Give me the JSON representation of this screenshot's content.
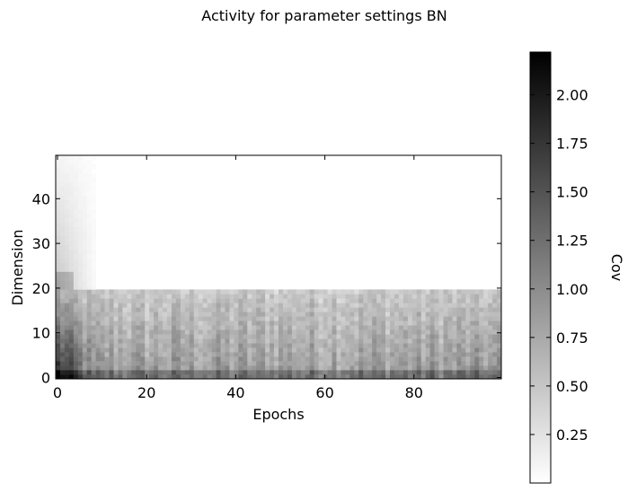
{
  "chart_data": {
    "type": "heatmap",
    "title": "Activity for parameter settings BN",
    "xlabel": "Epochs",
    "ylabel": "Dimension",
    "xlim": [
      0,
      99
    ],
    "ylim": [
      0,
      49
    ],
    "x_ticks": [
      "0",
      "20",
      "40",
      "60",
      "80"
    ],
    "y_ticks": [
      "0",
      "10",
      "20",
      "30",
      "40"
    ],
    "x_tick_values": [
      0,
      20,
      40,
      60,
      80
    ],
    "y_tick_values": [
      0,
      10,
      20,
      30,
      40
    ],
    "n_epochs": 100,
    "n_dimensions": 50,
    "colormap": "gray_r",
    "colorbar": {
      "label": "Cov",
      "range": [
        0.0,
        2.22
      ],
      "tick_values": [
        0.25,
        0.5,
        0.75,
        1.0,
        1.25,
        1.5,
        1.75,
        2.0
      ],
      "tick_labels": [
        "0.25",
        "0.50",
        "0.75",
        "1.00",
        "1.25",
        "1.50",
        "1.75",
        "2.00"
      ]
    },
    "value_profile": {
      "active_dimensions": [
        0,
        19
      ],
      "typical_active_value": 0.9,
      "peak_value": 2.2,
      "peak_region": "epochs 1-5, dimensions 0-8",
      "transient_region": "epochs 0-8, dimensions 20-49",
      "inactive_value": 0.0
    }
  }
}
